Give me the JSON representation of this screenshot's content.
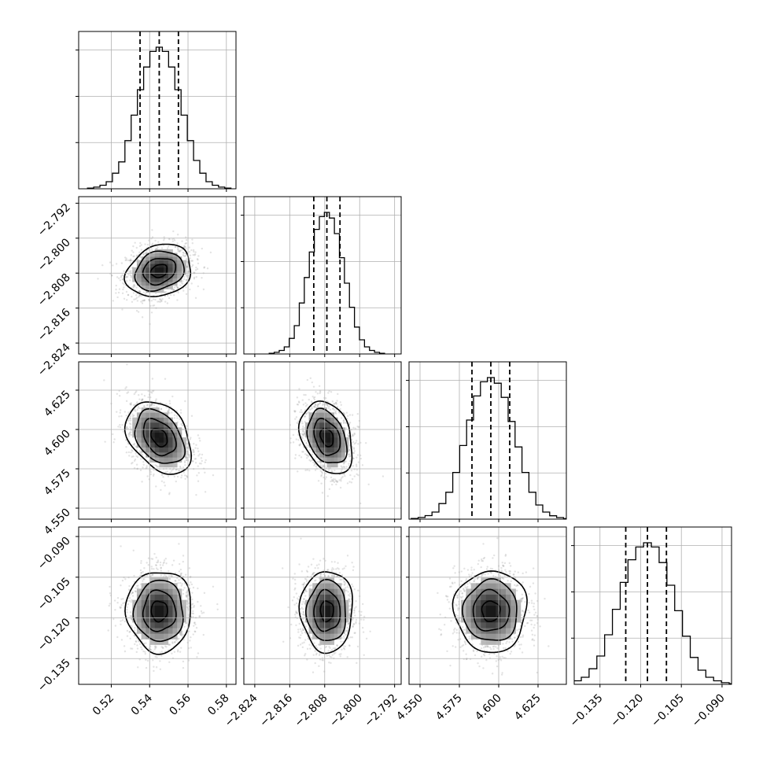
{
  "chart_data": {
    "type": "corner",
    "params": [
      {
        "ticks": [
          0.52,
          0.54,
          0.56,
          0.58
        ],
        "tick_labels": [
          "0.52",
          "0.54",
          "0.56",
          "0.58"
        ],
        "range": [
          0.503,
          0.585
        ],
        "median": 0.545,
        "q16": 0.535,
        "q84": 0.555,
        "sigma": 0.0085
      },
      {
        "ticks": [
          -2.824,
          -2.816,
          -2.808,
          -2.8,
          -2.792
        ],
        "tick_labels": [
          "−2.824",
          "−2.816",
          "−2.808",
          "−2.800",
          "−2.792"
        ],
        "range": [
          -2.8265,
          -2.7905
        ],
        "median": -2.8075,
        "q16": -2.8105,
        "q84": -2.8045,
        "sigma": 0.003
      },
      {
        "ticks": [
          4.55,
          4.575,
          4.6,
          4.625
        ],
        "tick_labels": [
          "4.550",
          "4.575",
          "4.600",
          "4.625"
        ],
        "range": [
          4.543,
          4.643
        ],
        "median": 4.595,
        "q16": 4.583,
        "q84": 4.607,
        "sigma": 0.0115
      },
      {
        "ticks": [
          -0.135,
          -0.12,
          -0.105,
          -0.09
        ],
        "tick_labels": [
          "−0.135",
          "−0.120",
          "−0.105",
          "−0.090"
        ],
        "range": [
          -0.1445,
          -0.0865
        ],
        "median": -0.1175,
        "q16": -0.1255,
        "q84": -0.1105,
        "sigma": 0.0075
      }
    ],
    "histograms": [
      [
        0.5,
        1.2,
        2.5,
        5,
        11,
        19,
        34,
        52,
        70,
        86,
        97,
        100,
        97,
        86,
        70,
        52,
        34,
        20,
        11,
        5,
        2.5,
        1.2,
        0.5
      ],
      [
        0.5,
        1.2,
        2.5,
        5,
        11,
        20,
        36,
        54,
        72,
        88,
        97,
        100,
        96,
        85,
        68,
        50,
        33,
        19,
        10,
        5,
        2.5,
        1.2,
        0.5
      ],
      [
        0.5,
        1.2,
        2.5,
        5,
        11,
        19,
        33,
        52,
        70,
        87,
        97,
        100,
        96,
        86,
        69,
        51,
        33,
        19,
        10,
        5,
        2.4,
        1.1,
        0.4
      ],
      [
        0.5,
        1.2,
        2.5,
        5,
        11,
        20,
        35,
        53,
        72,
        88,
        97,
        100,
        97,
        86,
        70,
        52,
        34,
        19,
        10,
        5,
        2.5,
        1.2,
        0.5
      ]
    ],
    "correlations": {
      "1-0": 0.2,
      "2-0": -0.35,
      "2-1": -0.3,
      "3-0": 0.0,
      "3-1": 0.0,
      "3-2": 0.0
    },
    "contour_levels_sigma": [
      0.5,
      1.0,
      1.5,
      2.0
    ],
    "grid": true
  }
}
